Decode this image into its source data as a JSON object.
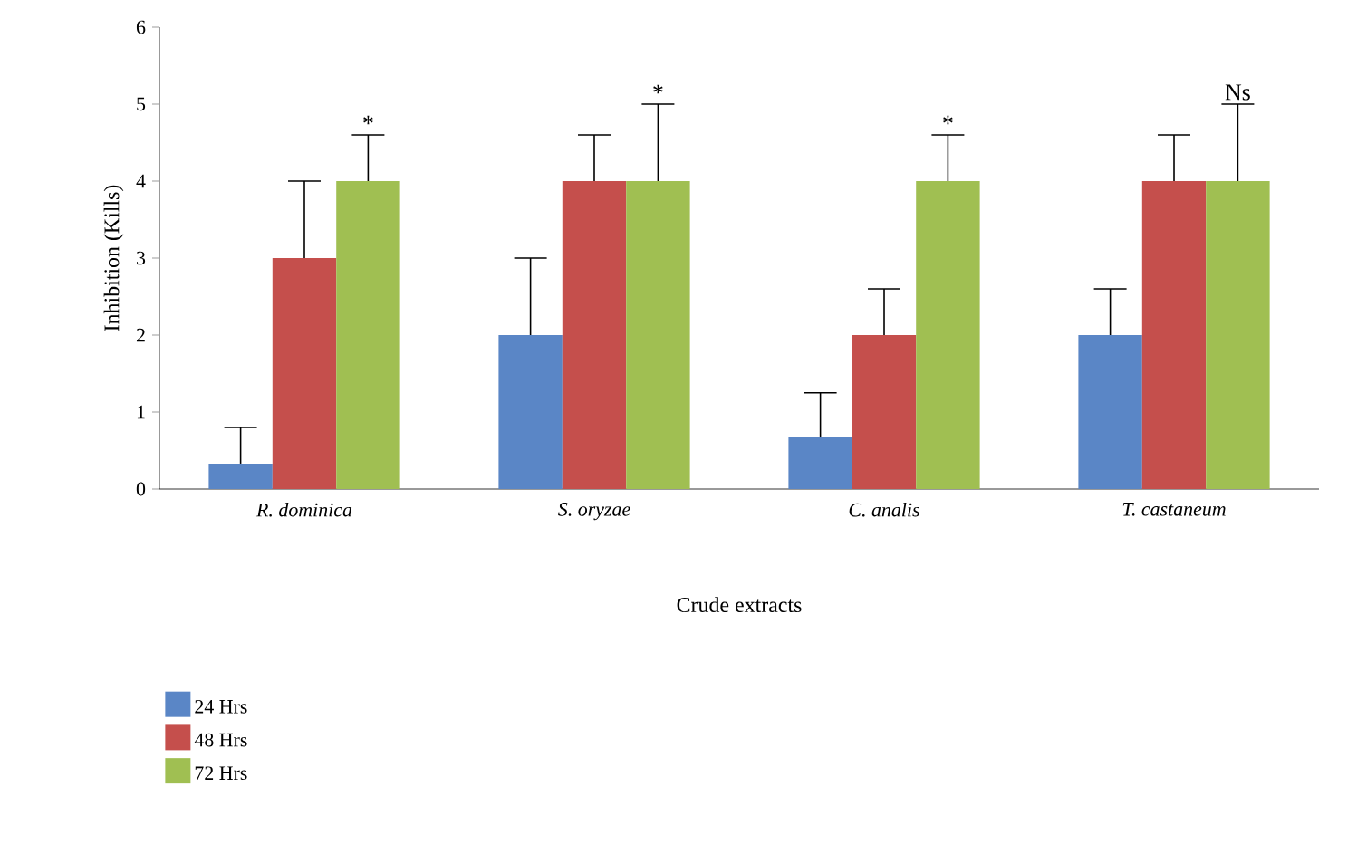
{
  "chart_data": {
    "type": "bar",
    "xlabel": "Crude extracts",
    "ylabel": "Inhibition (Kills)",
    "categories": [
      "R. dominica",
      "S. oryzae",
      "C. analis",
      "T. castaneum"
    ],
    "series": [
      {
        "name": "24 Hrs",
        "color": "#5a86c6",
        "values": [
          0.33,
          2,
          0.67,
          2
        ],
        "errors": [
          [
            0.33,
            0.8
          ],
          [
            2,
            3
          ],
          [
            0.67,
            1.25
          ],
          [
            2,
            2.6
          ]
        ]
      },
      {
        "name": "48 Hrs",
        "color": "#c54f4c",
        "values": [
          3,
          4,
          2,
          4
        ],
        "errors": [
          [
            3,
            4
          ],
          [
            4,
            4.6
          ],
          [
            2,
            2.6
          ],
          [
            4,
            4.6
          ]
        ]
      },
      {
        "name": "72 Hrs",
        "color": "#a0bf52",
        "values": [
          4,
          4,
          4,
          4
        ],
        "errors": [
          [
            4,
            4.6
          ],
          [
            4,
            5
          ],
          [
            4,
            4.6
          ],
          [
            4,
            5
          ]
        ]
      }
    ],
    "ylim": [
      0,
      6
    ],
    "yticks": [
      0,
      1,
      2,
      3,
      4,
      5,
      6
    ],
    "legend": "bottom left",
    "grid": false,
    "annotations": [
      "*",
      "*",
      "*",
      "Ns"
    ]
  }
}
